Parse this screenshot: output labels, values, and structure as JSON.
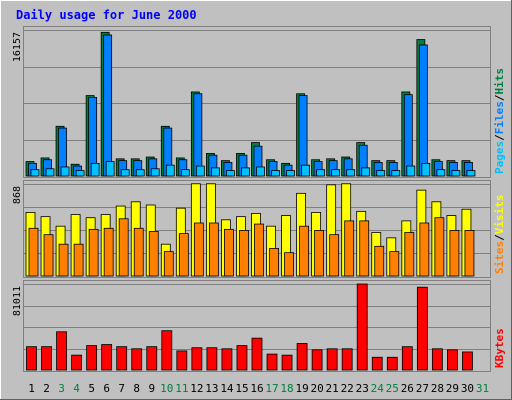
{
  "title": "Daily usage for June 2000",
  "colors": {
    "background": "#c0c0c0",
    "panel": "#c0c0c0",
    "title": "#0000ff",
    "hits": "#008040",
    "files": "#0080ff",
    "pages": "#00c0ff",
    "visits": "#ffff00",
    "sites": "#ff8000",
    "kbytes": "#ff0000",
    "weekday_label": "#000000",
    "weekend_label": "#008040",
    "separator": "#000000",
    "tick": "#000000"
  },
  "chart_data": [
    {
      "type": "bar",
      "panel": "hits-files-pages",
      "ymax_label": "16157",
      "ylim": [
        0,
        16157
      ],
      "legend_right": [
        "Pages",
        "/",
        "Files",
        "/",
        "Hits"
      ],
      "legend_colors": [
        "#00c0ff",
        "#000000",
        "#0080ff",
        "#000000",
        "#008040"
      ],
      "categories": [
        "1",
        "2",
        "3",
        "4",
        "5",
        "6",
        "7",
        "8",
        "9",
        "10",
        "11",
        "12",
        "13",
        "14",
        "15",
        "16",
        "17",
        "18",
        "19",
        "20",
        "21",
        "22",
        "23",
        "24",
        "25",
        "26",
        "27",
        "28",
        "29",
        "30",
        "31"
      ],
      "series": [
        {
          "name": "Hits",
          "values": [
            1600,
            2000,
            5500,
            1300,
            8900,
            15900,
            1900,
            1900,
            2100,
            5500,
            2000,
            9300,
            2500,
            1700,
            2500,
            3700,
            1800,
            1400,
            9100,
            1800,
            1900,
            2100,
            3700,
            1700,
            1700,
            9300,
            15100,
            1800,
            1700,
            1700,
            0
          ]
        },
        {
          "name": "Files",
          "values": [
            1400,
            1800,
            5300,
            1100,
            8700,
            15600,
            1700,
            1700,
            1900,
            5300,
            1800,
            9100,
            2300,
            1500,
            2300,
            3300,
            1600,
            1200,
            8900,
            1600,
            1700,
            1900,
            3400,
            1500,
            1500,
            9000,
            14500,
            1600,
            1500,
            1500,
            0
          ]
        },
        {
          "name": "Pages",
          "values": [
            700,
            800,
            1000,
            600,
            1400,
            1600,
            700,
            700,
            800,
            1200,
            700,
            1100,
            900,
            600,
            900,
            1000,
            600,
            600,
            1200,
            700,
            700,
            700,
            900,
            600,
            600,
            1100,
            1400,
            700,
            600,
            600,
            0
          ]
        }
      ]
    },
    {
      "type": "bar",
      "panel": "visits-sites",
      "ymax_label": "868",
      "ylim": [
        0,
        868
      ],
      "legend_right": [
        "Sites",
        "/",
        "Visits"
      ],
      "legend_colors": [
        "#ff8000",
        "#000000",
        "#ffff00"
      ],
      "categories": [
        "1",
        "2",
        "3",
        "4",
        "5",
        "6",
        "7",
        "8",
        "9",
        "10",
        "11",
        "12",
        "13",
        "14",
        "15",
        "16",
        "17",
        "18",
        "19",
        "20",
        "21",
        "22",
        "23",
        "24",
        "25",
        "26",
        "27",
        "28",
        "29",
        "30",
        "31"
      ],
      "series": [
        {
          "name": "Visits",
          "values": [
            600,
            560,
            470,
            580,
            550,
            580,
            660,
            700,
            670,
            300,
            640,
            870,
            870,
            530,
            560,
            590,
            470,
            570,
            780,
            600,
            860,
            870,
            610,
            410,
            360,
            520,
            810,
            700,
            570,
            630,
            0
          ]
        },
        {
          "name": "Sites",
          "values": [
            450,
            390,
            300,
            300,
            440,
            450,
            540,
            450,
            420,
            230,
            400,
            500,
            500,
            440,
            430,
            490,
            260,
            220,
            470,
            430,
            390,
            520,
            520,
            280,
            230,
            410,
            500,
            550,
            430,
            430,
            0
          ]
        }
      ]
    },
    {
      "type": "bar",
      "panel": "kbytes",
      "ymax_label": "81011",
      "ylim": [
        0,
        81011
      ],
      "legend_right": [
        "KBytes"
      ],
      "legend_colors": [
        "#ff0000"
      ],
      "categories": [
        "1",
        "2",
        "3",
        "4",
        "5",
        "6",
        "7",
        "8",
        "9",
        "10",
        "11",
        "12",
        "13",
        "14",
        "15",
        "16",
        "17",
        "18",
        "19",
        "20",
        "21",
        "22",
        "23",
        "24",
        "25",
        "26",
        "27",
        "28",
        "29",
        "30",
        "31"
      ],
      "series": [
        {
          "name": "KBytes",
          "values": [
            22000,
            22000,
            36000,
            14000,
            23000,
            24000,
            22000,
            20000,
            22000,
            37000,
            18000,
            21000,
            21000,
            20000,
            23000,
            30000,
            15000,
            14000,
            25000,
            19000,
            20000,
            20000,
            81000,
            12000,
            12000,
            22000,
            78000,
            20000,
            19000,
            17000,
            0
          ]
        }
      ]
    }
  ],
  "x_labels": [
    "1",
    "2",
    "3",
    "4",
    "5",
    "6",
    "7",
    "8",
    "9",
    "10",
    "11",
    "12",
    "13",
    "14",
    "15",
    "16",
    "17",
    "18",
    "19",
    "20",
    "21",
    "22",
    "23",
    "24",
    "25",
    "26",
    "27",
    "28",
    "29",
    "30",
    "31"
  ],
  "weekend_days": [
    3,
    4,
    10,
    11,
    17,
    18,
    24,
    25,
    31
  ]
}
